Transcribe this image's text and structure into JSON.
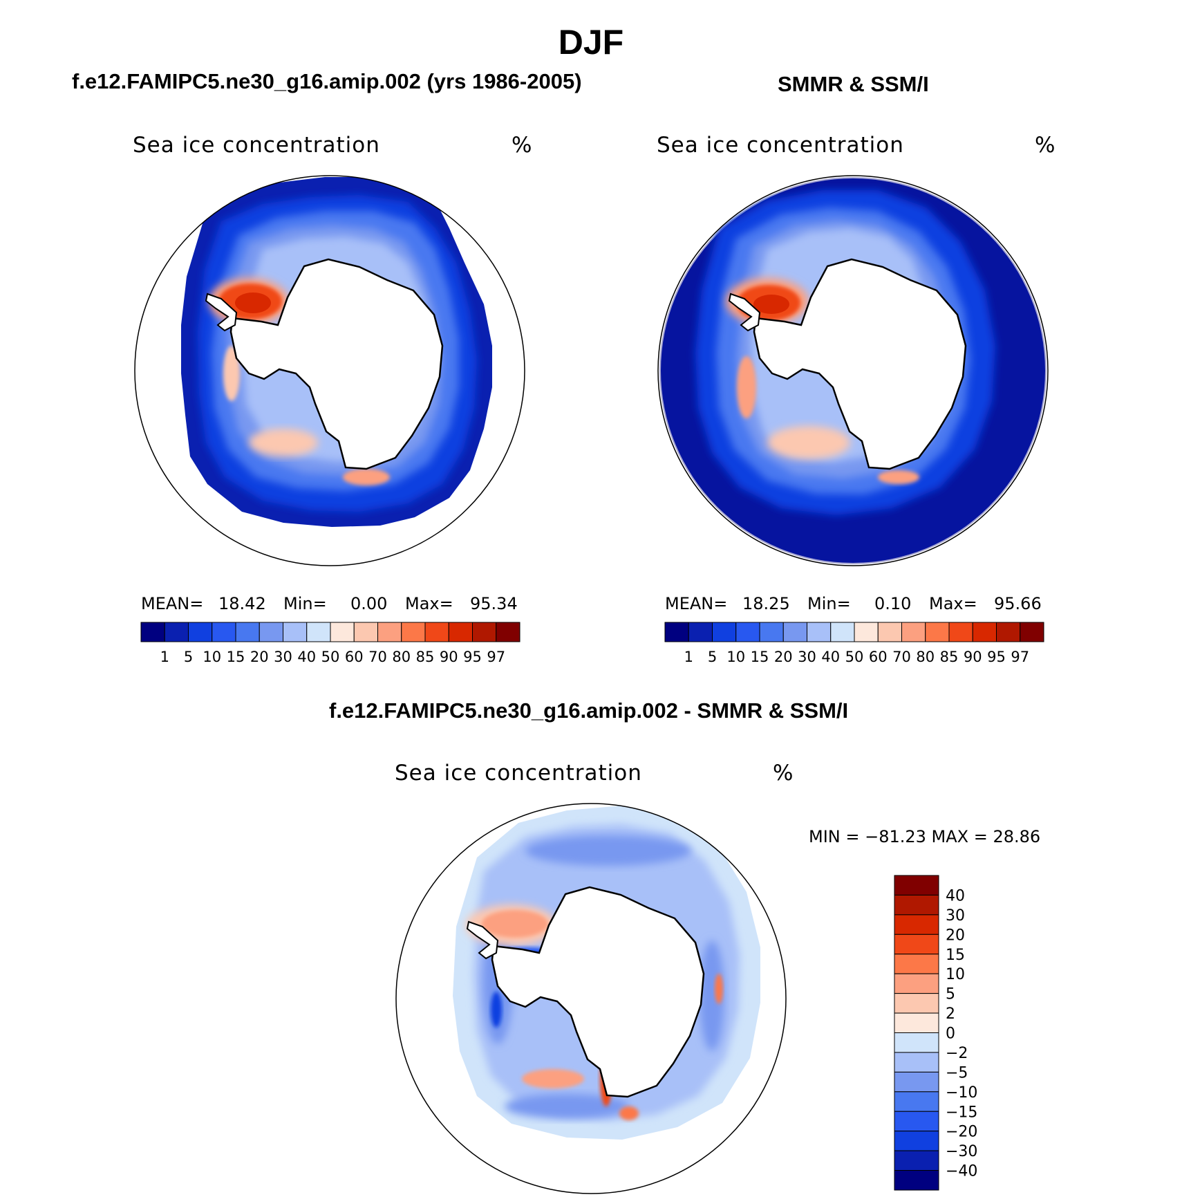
{
  "figure": {
    "title": "DJF",
    "left_case": "f.e12.FAMIPC5.ne30_g16.amip.002 (yrs 1986-2005)",
    "right_case": "SMMR & SSM/I",
    "diff_case": "f.e12.FAMIPC5.ne30_g16.amip.002 - SMMR & SSM/I"
  },
  "panels": {
    "left": {
      "variable": "Sea ice concentration",
      "units": "%",
      "mean_label": "MEAN=",
      "mean": "18.42",
      "min_label": "Min=",
      "min": "0.00",
      "max_label": "Max=",
      "max": "95.34"
    },
    "right": {
      "variable": "Sea ice concentration",
      "units": "%",
      "mean_label": "MEAN=",
      "mean": "18.25",
      "min_label": "Min=",
      "min": "0.10",
      "max_label": "Max=",
      "max": "95.66"
    },
    "diff": {
      "variable": "Sea ice concentration",
      "units": "%",
      "range_text": "MIN = −81.23 MAX =   28.86"
    }
  },
  "colorbars": {
    "abs_labels": [
      "1",
      "5",
      "10",
      "15",
      "20",
      "30",
      "40",
      "50",
      "60",
      "70",
      "80",
      "85",
      "90",
      "95",
      "97"
    ],
    "abs_colors": [
      "#000080",
      "#0a20b0",
      "#1040e0",
      "#2858f0",
      "#4878f0",
      "#7898f0",
      "#a8c0f8",
      "#d0e4fa",
      "#fde8dc",
      "#fcc8b0",
      "#fca080",
      "#fc7848",
      "#f04818",
      "#d82800",
      "#b01800",
      "#800000"
    ],
    "diff_labels": [
      "40",
      "30",
      "20",
      "15",
      "10",
      "5",
      "2",
      "0",
      "−2",
      "−5",
      "−10",
      "−15",
      "−20",
      "−30",
      "−40"
    ],
    "diff_colors": [
      "#800000",
      "#b01800",
      "#d82800",
      "#f04818",
      "#fc7848",
      "#fca080",
      "#fcc8b0",
      "#fde8dc",
      "#d0e4fa",
      "#a8c0f8",
      "#7898f0",
      "#4878f0",
      "#2858f0",
      "#1040e0",
      "#0a20b0",
      "#000080"
    ]
  }
}
